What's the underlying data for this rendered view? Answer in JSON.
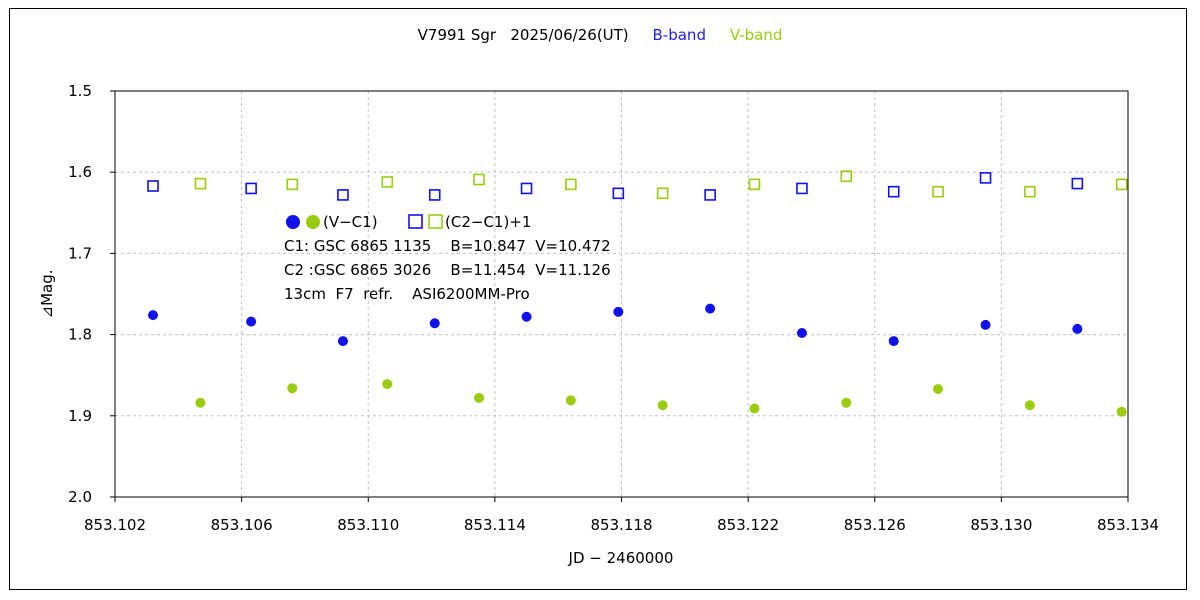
{
  "chart_data": {
    "type": "scatter",
    "title": "V7991 Sgr   2025/06/26(UT)",
    "band_labels": [
      {
        "text": "B-band",
        "color": "#2222dd"
      },
      {
        "text": "V-band",
        "color": "#99cc11"
      }
    ],
    "xlabel": "JD − 2460000",
    "ylabel": "⊿Mag.",
    "xlim": [
      853.102,
      853.134
    ],
    "ylim": [
      1.5,
      2.0
    ],
    "y_inverted": true,
    "x_ticks": [
      "853.102",
      "853.106",
      "853.110",
      "853.114",
      "853.118",
      "853.122",
      "853.126",
      "853.130",
      "853.134"
    ],
    "y_ticks": [
      "1.5",
      "1.6",
      "1.7",
      "1.8",
      "1.9",
      "2.0"
    ],
    "grid": true,
    "legend": {
      "symbol_row": "(V−C1)",
      "symbol_row_2": "(C2−C1)+1",
      "lines": [
        "C1: GSC 6865 1135    B=10.847  V=10.472",
        "C2 :GSC 6865 3026    B=11.454  V=11.126",
        "13cm  F7  refr.    ASI6200MM-Pro"
      ]
    },
    "series": [
      {
        "band": "B",
        "kind": "V-C1",
        "color": "#1111ee",
        "marker": "filled-circle",
        "x": [
          853.1032,
          853.1063,
          853.1092,
          853.1121,
          853.115,
          853.1179,
          853.1208,
          853.1237,
          853.1266,
          853.1295,
          853.1324
        ],
        "y": [
          1.776,
          1.784,
          1.808,
          1.786,
          1.778,
          1.772,
          1.768,
          1.798,
          1.808,
          1.788,
          1.793
        ]
      },
      {
        "band": "V",
        "kind": "V-C1",
        "color": "#99cc11",
        "marker": "filled-circle",
        "x": [
          853.1047,
          853.1076,
          853.1106,
          853.1135,
          853.1164,
          853.1193,
          853.1222,
          853.1251,
          853.128,
          853.1309,
          853.1338
        ],
        "y": [
          1.884,
          1.866,
          1.861,
          1.878,
          1.881,
          1.887,
          1.891,
          1.884,
          1.867,
          1.887,
          1.895
        ]
      },
      {
        "band": "B",
        "kind": "C2-C1+1",
        "color": "#1111ee",
        "marker": "open-square",
        "x": [
          853.1032,
          853.1063,
          853.1092,
          853.1121,
          853.115,
          853.1179,
          853.1208,
          853.1237,
          853.1266,
          853.1295,
          853.1324
        ],
        "y": [
          1.617,
          1.62,
          1.628,
          1.628,
          1.62,
          1.626,
          1.628,
          1.62,
          1.624,
          1.607,
          1.614
        ]
      },
      {
        "band": "V",
        "kind": "C2-C1+1",
        "color": "#99cc11",
        "marker": "open-square",
        "x": [
          853.1047,
          853.1076,
          853.1106,
          853.1135,
          853.1164,
          853.1193,
          853.1222,
          853.1251,
          853.128,
          853.1309,
          853.1338
        ],
        "y": [
          1.614,
          1.615,
          1.612,
          1.609,
          1.615,
          1.626,
          1.615,
          1.605,
          1.624,
          1.624,
          1.615
        ]
      }
    ]
  }
}
